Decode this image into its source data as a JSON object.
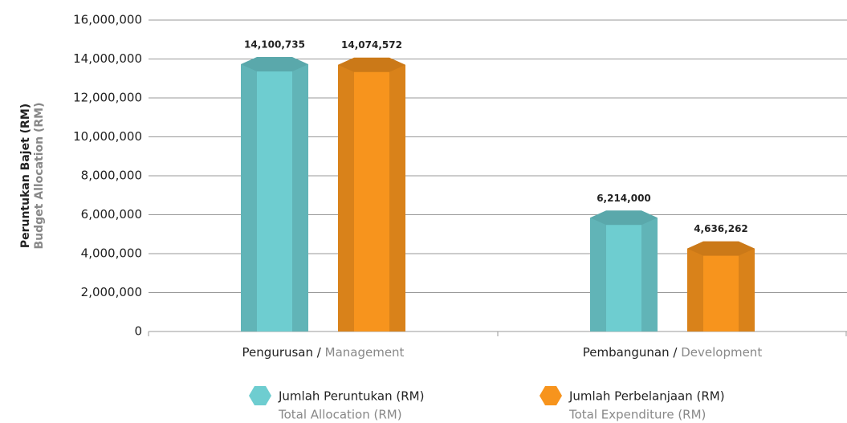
{
  "chart_data": {
    "type": "bar",
    "y_label": [
      "Peruntukan Bajet (RM)",
      "Budget Allocation (RM)"
    ],
    "categories": [
      [
        "Pengurusan /",
        "Management"
      ],
      [
        "Pembangunan /",
        "Development"
      ]
    ],
    "series": [
      {
        "name": "Jumlah Peruntukan (RM)",
        "name_en": "Total Allocation (RM)",
        "color": "#6ecdd0",
        "values": [
          14100735,
          6214000
        ],
        "value_labels": [
          "14,100,735",
          "6,214,000"
        ]
      },
      {
        "name": "Jumlah Perbelanjaan (RM)",
        "name_en": "Total Expenditure (RM)",
        "color": "#f7941d",
        "values": [
          14074572,
          4636262
        ],
        "value_labels": [
          "14,074,572",
          "4,636,262"
        ]
      }
    ],
    "ylim": [
      0,
      16000000
    ],
    "yticks": [
      0,
      {
        "value": 2000000,
        "label": "2,000,000"
      },
      {
        "value": 4000000,
        "label": "4,000,000"
      },
      {
        "value": 6000000,
        "label": "6,000,000"
      },
      {
        "value": 8000000,
        "label": "8,000,000"
      },
      {
        "value": 10000000,
        "label": "10,000,000"
      },
      {
        "value": 12000000,
        "label": "12,000,000"
      },
      {
        "value": 14000000,
        "label": "14,000,000"
      },
      {
        "value": 16000000,
        "label": "16,000,000"
      }
    ],
    "grid": true
  }
}
